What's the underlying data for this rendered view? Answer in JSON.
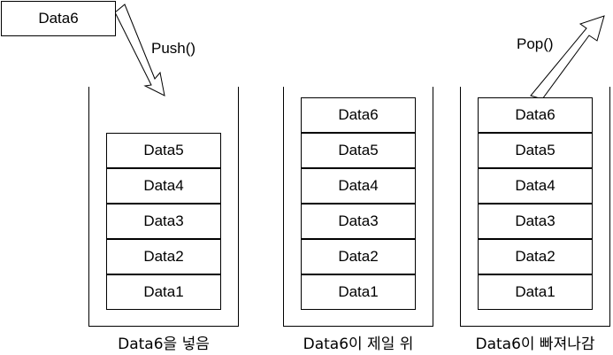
{
  "incoming_item": "Data6",
  "push_label": "Push()",
  "pop_label": "Pop()",
  "stacks": [
    {
      "caption": "Data6을 넣음",
      "items": [
        "Data5",
        "Data4",
        "Data3",
        "Data2",
        "Data1"
      ]
    },
    {
      "caption": "Data6이 제일 위",
      "items": [
        "Data6",
        "Data5",
        "Data4",
        "Data3",
        "Data2",
        "Data1"
      ]
    },
    {
      "caption": "Data6이 빠져나감",
      "items": [
        "Data6",
        "Data5",
        "Data4",
        "Data3",
        "Data2",
        "Data1"
      ]
    }
  ]
}
